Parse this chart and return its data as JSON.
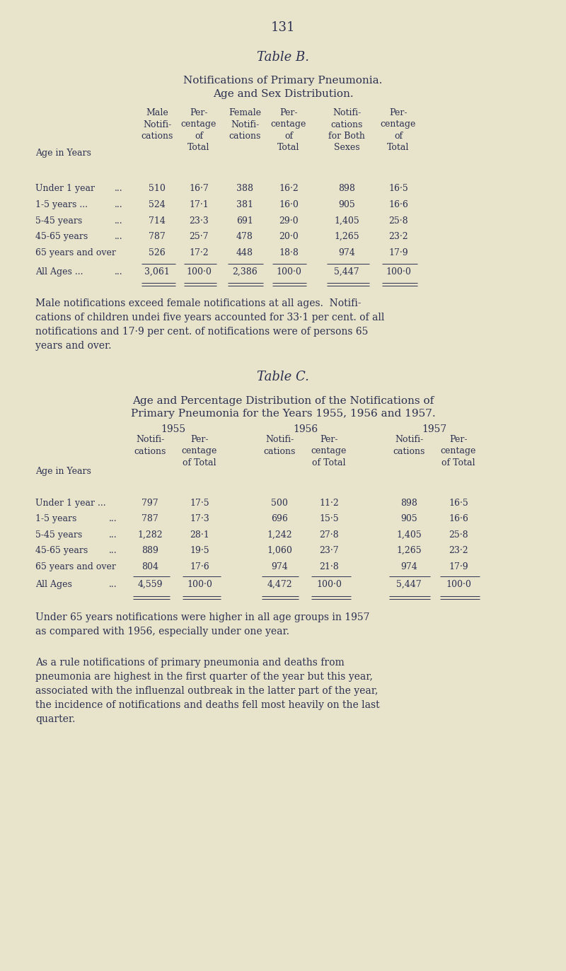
{
  "bg_color": "#e8e4cc",
  "text_color": "#2c3050",
  "page_number": "131",
  "table_b_title": "Table B.",
  "table_b_subtitle1": "Notifications of Primary Pneumonia.",
  "table_b_subtitle2": "Age and Sex Distribution.",
  "table_c_title": "Table C.",
  "table_c_subtitle1": "Age and Percentage Distribution of the Notifications of",
  "table_c_subtitle2": "Primary Pneumonia for the Years 1955, 1956 and 1957.",
  "table_b_rows": [
    [
      "Under 1 year",
      "...",
      "510",
      "16·7",
      "388",
      "16·2",
      "898",
      "16·5"
    ],
    [
      "1-5 years ...",
      "...",
      "524",
      "17·1",
      "381",
      "16·0",
      "905",
      "16·6"
    ],
    [
      "5-45 years",
      "...",
      "714",
      "23·3",
      "691",
      "29·0",
      "1,405",
      "25·8"
    ],
    [
      "45-65 years",
      "...",
      "787",
      "25·7",
      "478",
      "20·0",
      "1,265",
      "23·2"
    ],
    [
      "65 years and over",
      "",
      "526",
      "17·2",
      "448",
      "18·8",
      "974",
      "17·9"
    ],
    [
      "All Ages ...",
      "...",
      "3,061",
      "100·0",
      "2,386",
      "100·0",
      "5,447",
      "100·0"
    ]
  ],
  "table_b_para_lines": [
    "Male notifications exceed female notifications at all ages.  Notifi-",
    "cations of children undei five years accounted for 33·1 per cent. of all",
    "notifications and 17·9 per cent. of notifications were of persons 65",
    "years and over."
  ],
  "table_c_rows": [
    [
      "Under 1 year ...",
      "",
      "797",
      "17·5",
      "500",
      "11·2",
      "898",
      "16·5"
    ],
    [
      "1-5 years",
      "...",
      "787",
      "17·3",
      "696",
      "15·5",
      "905",
      "16·6"
    ],
    [
      "5-45 years",
      "...",
      "1,282",
      "28·1",
      "1,242",
      "27·8",
      "1,405",
      "25·8"
    ],
    [
      "45-65 years",
      "...",
      "889",
      "19·5",
      "1,060",
      "23·7",
      "1,265",
      "23·2"
    ],
    [
      "65 years and over",
      "",
      "804",
      "17·6",
      "974",
      "21·8",
      "974",
      "17·9"
    ],
    [
      "All Ages",
      "...",
      "4,559",
      "100·0",
      "4,472",
      "100·0",
      "5,447",
      "100·0"
    ]
  ],
  "table_c_para1_lines": [
    "Under 65 years notifications were higher in all age groups in 1957",
    "as compared with 1956, especially under one year."
  ],
  "table_c_para2_lines": [
    "As a rule notifications of primary pneumonia and deaths from",
    "pneumonia are highest in the first quarter of the year but this year,",
    "associated with the influenzal outbreak in the latter part of the year,",
    "the incidence of notifications and deaths fell most heavily on the last",
    "quarter."
  ]
}
